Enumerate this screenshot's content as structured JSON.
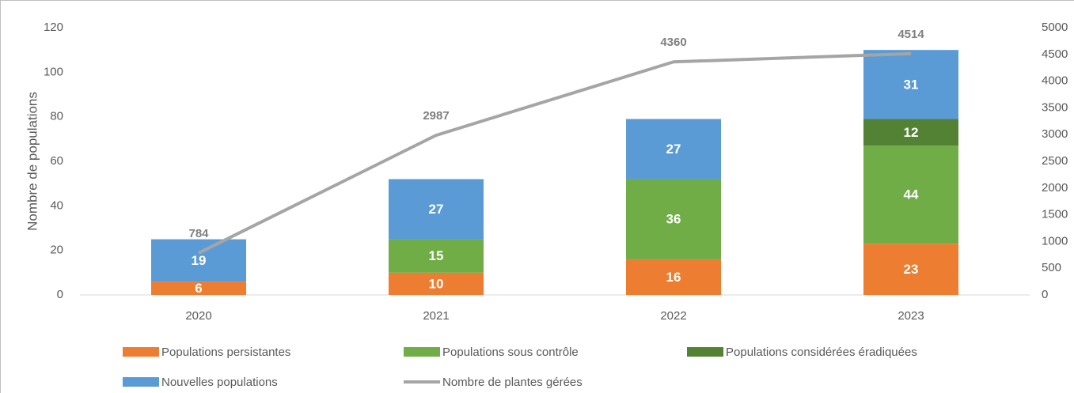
{
  "chart_data": {
    "type": "bar",
    "categories": [
      "2020",
      "2021",
      "2022",
      "2023"
    ],
    "series": [
      {
        "name": "Populations persistantes",
        "color": "#ed7d31",
        "values": [
          6,
          10,
          16,
          23
        ]
      },
      {
        "name": "Populations sous contrôle",
        "color": "#70ad47",
        "values": [
          null,
          15,
          36,
          44
        ]
      },
      {
        "name": "Populations considérées éradiquées",
        "color": "#548235",
        "values": [
          null,
          null,
          null,
          12
        ]
      },
      {
        "name": "Nouvelles populations",
        "color": "#5b9bd5",
        "values": [
          19,
          27,
          27,
          31
        ]
      },
      {
        "name": "Nombre de plantes gérées",
        "color": "#a5a5a5",
        "type": "line",
        "axis": "y2",
        "values": [
          784,
          2987,
          4360,
          4514
        ]
      }
    ],
    "y_label": "Nombre de populations",
    "ylim": [
      0,
      120
    ],
    "yticks": [
      0,
      20,
      40,
      60,
      80,
      100,
      120
    ],
    "y2lim": [
      0,
      5000
    ],
    "y2ticks": [
      0,
      500,
      1000,
      1500,
      2000,
      2500,
      3000,
      3500,
      4000,
      4500,
      5000
    ],
    "grid": false,
    "stacked": true,
    "legend": "bottom"
  }
}
